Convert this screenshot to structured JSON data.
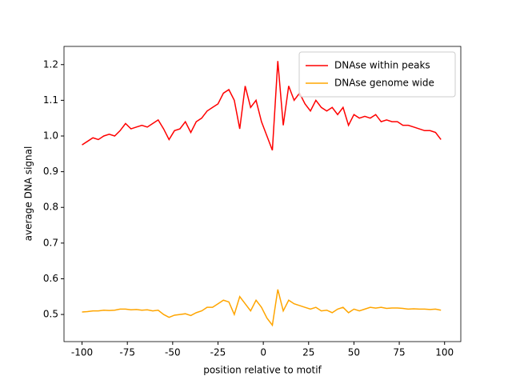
{
  "chart_data": {
    "type": "line",
    "xlabel": "position relative to motif",
    "ylabel": "average DNA signal",
    "x": [
      -100,
      -97,
      -94,
      -91,
      -88,
      -85,
      -82,
      -79,
      -76,
      -73,
      -70,
      -67,
      -64,
      -61,
      -58,
      -55,
      -52,
      -49,
      -46,
      -43,
      -40,
      -37,
      -34,
      -31,
      -28,
      -25,
      -22,
      -19,
      -16,
      -13,
      -10,
      -7,
      -4,
      -1,
      2,
      5,
      8,
      11,
      14,
      17,
      20,
      23,
      26,
      29,
      32,
      35,
      38,
      41,
      44,
      47,
      50,
      53,
      56,
      59,
      62,
      65,
      68,
      71,
      74,
      77,
      80,
      83,
      86,
      89,
      92,
      95,
      98
    ],
    "series": [
      {
        "name": "DNAse within peaks",
        "color": "#ff0000",
        "values": [
          0.975,
          0.985,
          0.995,
          0.99,
          1.0,
          1.005,
          1.0,
          1.015,
          1.035,
          1.02,
          1.025,
          1.03,
          1.025,
          1.035,
          1.045,
          1.02,
          0.99,
          1.015,
          1.02,
          1.04,
          1.01,
          1.04,
          1.05,
          1.07,
          1.08,
          1.09,
          1.12,
          1.13,
          1.1,
          1.02,
          1.14,
          1.08,
          1.1,
          1.04,
          1.0,
          0.96,
          1.21,
          1.03,
          1.14,
          1.1,
          1.12,
          1.09,
          1.07,
          1.1,
          1.08,
          1.07,
          1.08,
          1.06,
          1.08,
          1.03,
          1.06,
          1.05,
          1.055,
          1.05,
          1.06,
          1.04,
          1.045,
          1.04,
          1.04,
          1.03,
          1.03,
          1.025,
          1.02,
          1.015,
          1.015,
          1.01,
          0.99
        ]
      },
      {
        "name": "DNAse genome wide",
        "color": "#ffa500",
        "values": [
          0.507,
          0.508,
          0.51,
          0.51,
          0.512,
          0.511,
          0.512,
          0.515,
          0.515,
          0.513,
          0.514,
          0.512,
          0.513,
          0.51,
          0.512,
          0.5,
          0.492,
          0.498,
          0.5,
          0.502,
          0.497,
          0.505,
          0.51,
          0.52,
          0.52,
          0.53,
          0.54,
          0.535,
          0.5,
          0.55,
          0.53,
          0.51,
          0.54,
          0.52,
          0.49,
          0.47,
          0.57,
          0.51,
          0.54,
          0.53,
          0.525,
          0.52,
          0.515,
          0.52,
          0.51,
          0.512,
          0.505,
          0.515,
          0.52,
          0.505,
          0.515,
          0.51,
          0.515,
          0.52,
          0.518,
          0.52,
          0.517,
          0.518,
          0.518,
          0.517,
          0.515,
          0.516,
          0.515,
          0.515,
          0.514,
          0.515,
          0.512
        ]
      }
    ],
    "xlim": [
      -109.95,
      108.95
    ],
    "ylim": [
      0.424,
      1.251
    ],
    "xticks": [
      -100,
      -75,
      -50,
      -25,
      0,
      25,
      50,
      75,
      100
    ],
    "yticks": [
      0.5,
      0.6,
      0.7,
      0.8,
      0.9,
      {
        "value": 1,
        "label": "1.0"
      },
      1.1,
      1.2
    ],
    "legend": "upper right"
  }
}
